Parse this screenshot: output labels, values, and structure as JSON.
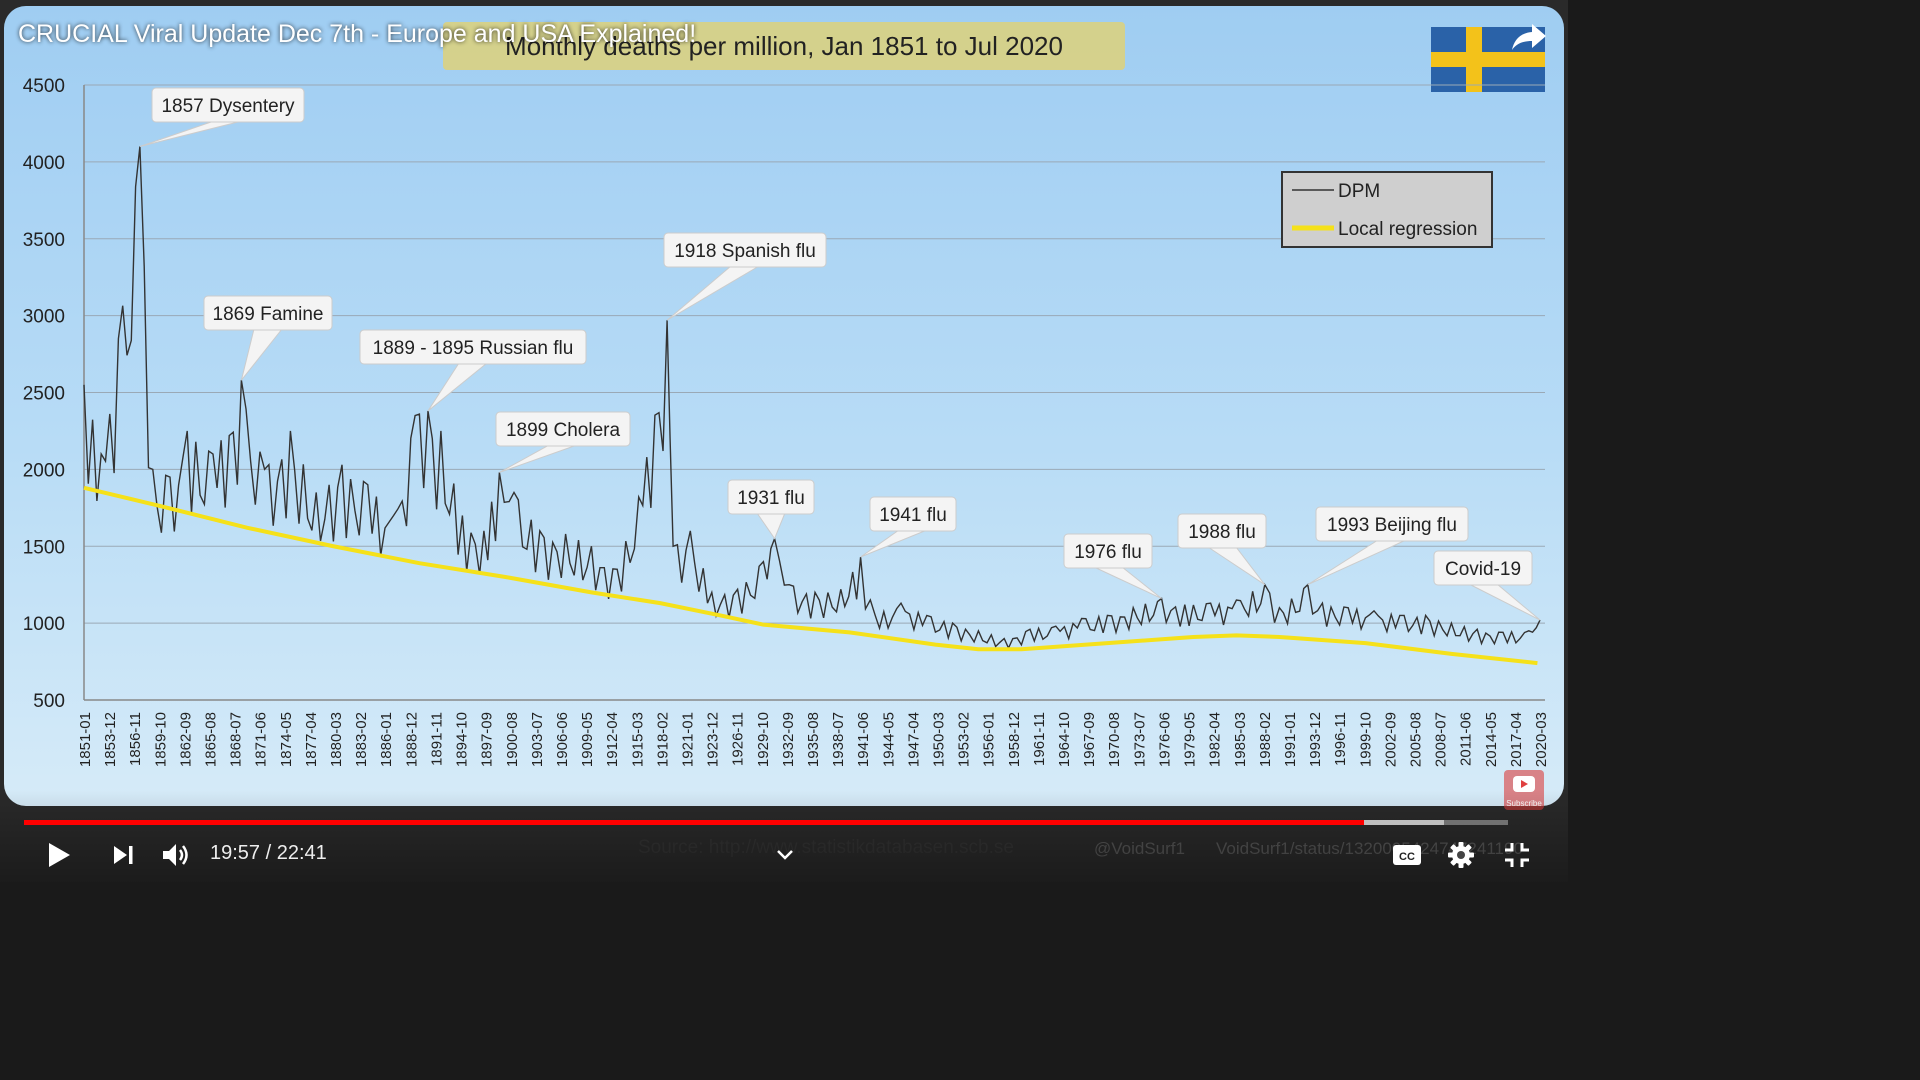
{
  "video": {
    "title": "CRUCIAL Viral Update Dec 7th - Europe and USA Explained!",
    "time_current": "19:57",
    "time_total": "22:41",
    "progress": 0.903,
    "buffered": 0.957
  },
  "slide": {
    "chart_title": "Monthly deaths per million, Jan 1851 to Jul 2020",
    "source": "Source: http://www.statistikdatabasen.scb.se",
    "handle": "@VoidSurf1",
    "status": "VoidSurf1/status/1320005424747241190",
    "watermark_label": "Subscribe"
  },
  "colors": {
    "flag_blue": "#2a62a8",
    "flag_yellow": "#f3c21a",
    "dpm_line": "#333333",
    "regression": "#f5e11a",
    "progress": "#ff0000"
  },
  "icons": {
    "share": "share-arrow-icon",
    "play": "play-icon",
    "next": "next-icon",
    "volume": "volume-icon",
    "cc": "cc-icon",
    "settings": "gear-icon",
    "fullscreen": "exit-fullscreen-icon",
    "chevron": "chevron-down-icon"
  },
  "chart_data": {
    "type": "line",
    "title": "Monthly deaths per million, Jan 1851 to Jul 2020",
    "xlabel": "",
    "ylabel": "",
    "ylim": [
      500,
      4500
    ],
    "yticks": [
      500,
      1000,
      1500,
      2000,
      2500,
      3000,
      3500,
      4000,
      4500
    ],
    "grid": true,
    "legend_position": "top-right",
    "x_tick_labels": [
      "1851-01",
      "1853-12",
      "1856-11",
      "1859-10",
      "1862-09",
      "1865-08",
      "1868-07",
      "1871-06",
      "1874-05",
      "1877-04",
      "1880-03",
      "1883-02",
      "1886-01",
      "1888-12",
      "1891-11",
      "1894-10",
      "1897-09",
      "1900-08",
      "1903-07",
      "1906-06",
      "1909-05",
      "1912-04",
      "1915-03",
      "1918-02",
      "1921-01",
      "1923-12",
      "1926-11",
      "1929-10",
      "1932-09",
      "1935-08",
      "1938-07",
      "1941-06",
      "1944-05",
      "1947-04",
      "1950-03",
      "1953-02",
      "1956-01",
      "1958-12",
      "1961-11",
      "1964-10",
      "1967-09",
      "1970-08",
      "1973-07",
      "1976-06",
      "1979-05",
      "1982-04",
      "1985-03",
      "1988-02",
      "1991-01",
      "1993-12",
      "1996-11",
      "1999-10",
      "2002-09",
      "2005-08",
      "2008-07",
      "2011-06",
      "2014-05",
      "2017-04",
      "2020-03"
    ],
    "series": [
      {
        "name": "DPM",
        "x": [
          1851.0,
          1853.0,
          1855.0,
          1857.5,
          1859.0,
          1861.0,
          1863.0,
          1866.0,
          1869.3,
          1872.0,
          1875.0,
          1878.0,
          1881.0,
          1884.0,
          1887.0,
          1889.5,
          1891.0,
          1892.5,
          1895.0,
          1897.5,
          1899.3,
          1901.0,
          1904.0,
          1907.0,
          1910.0,
          1913.0,
          1915.5,
          1918.8,
          1919.5,
          1921.5,
          1924.0,
          1927.0,
          1930.0,
          1931.3,
          1933.0,
          1936.0,
          1939.0,
          1941.3,
          1943.0,
          1946.0,
          1949.0,
          1952.0,
          1955.0,
          1958.0,
          1961.0,
          1964.0,
          1967.0,
          1970.0,
          1973.0,
          1976.3,
          1979.0,
          1982.0,
          1985.0,
          1988.3,
          1990.0,
          1993.3,
          1995.0,
          1998.0,
          2001.0,
          2004.0,
          2007.0,
          2010.0,
          2013.0,
          2016.0,
          2019.0,
          2020.3
        ],
        "values": [
          2550,
          2100,
          2850,
          4100,
          2000,
          1950,
          2250,
          2100,
          2580,
          2000,
          2250,
          1850,
          2030,
          1900,
          1700,
          2350,
          2380,
          2250,
          1700,
          1600,
          1980,
          1850,
          1600,
          1580,
          1500,
          1350,
          1820,
          2970,
          1500,
          1600,
          1200,
          1220,
          1400,
          1550,
          1250,
          1200,
          1220,
          1430,
          1050,
          1130,
          1050,
          1000,
          950,
          900,
          960,
          980,
          1030,
          1050,
          1100,
          1160,
          1120,
          1130,
          1150,
          1250,
          1100,
          1250,
          1130,
          1100,
          1080,
          1050,
          1050,
          1000,
          960,
          940,
          950,
          1020
        ]
      },
      {
        "name": "Local regression",
        "x": [
          1851,
          1860,
          1870,
          1880,
          1890,
          1900,
          1910,
          1918,
          1925,
          1930,
          1940,
          1950,
          1955,
          1960,
          1970,
          1980,
          1985,
          1990,
          2000,
          2010,
          2020
        ],
        "values": [
          1880,
          1760,
          1620,
          1500,
          1390,
          1300,
          1200,
          1130,
          1050,
          990,
          940,
          860,
          830,
          830,
          870,
          910,
          920,
          910,
          870,
          800,
          740
        ]
      }
    ],
    "annotations": [
      {
        "text": "1857 Dysentery",
        "x": 1857.5,
        "y": 4100
      },
      {
        "text": "1869 Famine",
        "x": 1869.3,
        "y": 2580
      },
      {
        "text": "1889 - 1895 Russian flu",
        "x": 1891.0,
        "y": 2380
      },
      {
        "text": "1899 Cholera",
        "x": 1899.3,
        "y": 1980
      },
      {
        "text": "1918 Spanish flu",
        "x": 1918.8,
        "y": 2970
      },
      {
        "text": "1931 flu",
        "x": 1931.3,
        "y": 1550
      },
      {
        "text": "1941 flu",
        "x": 1941.3,
        "y": 1430
      },
      {
        "text": "1976 flu",
        "x": 1976.3,
        "y": 1160
      },
      {
        "text": "1988 flu",
        "x": 1988.3,
        "y": 1250
      },
      {
        "text": "1993 Beijing flu",
        "x": 1993.3,
        "y": 1250
      },
      {
        "text": "Covid-19",
        "x": 2020.3,
        "y": 1020
      }
    ]
  }
}
